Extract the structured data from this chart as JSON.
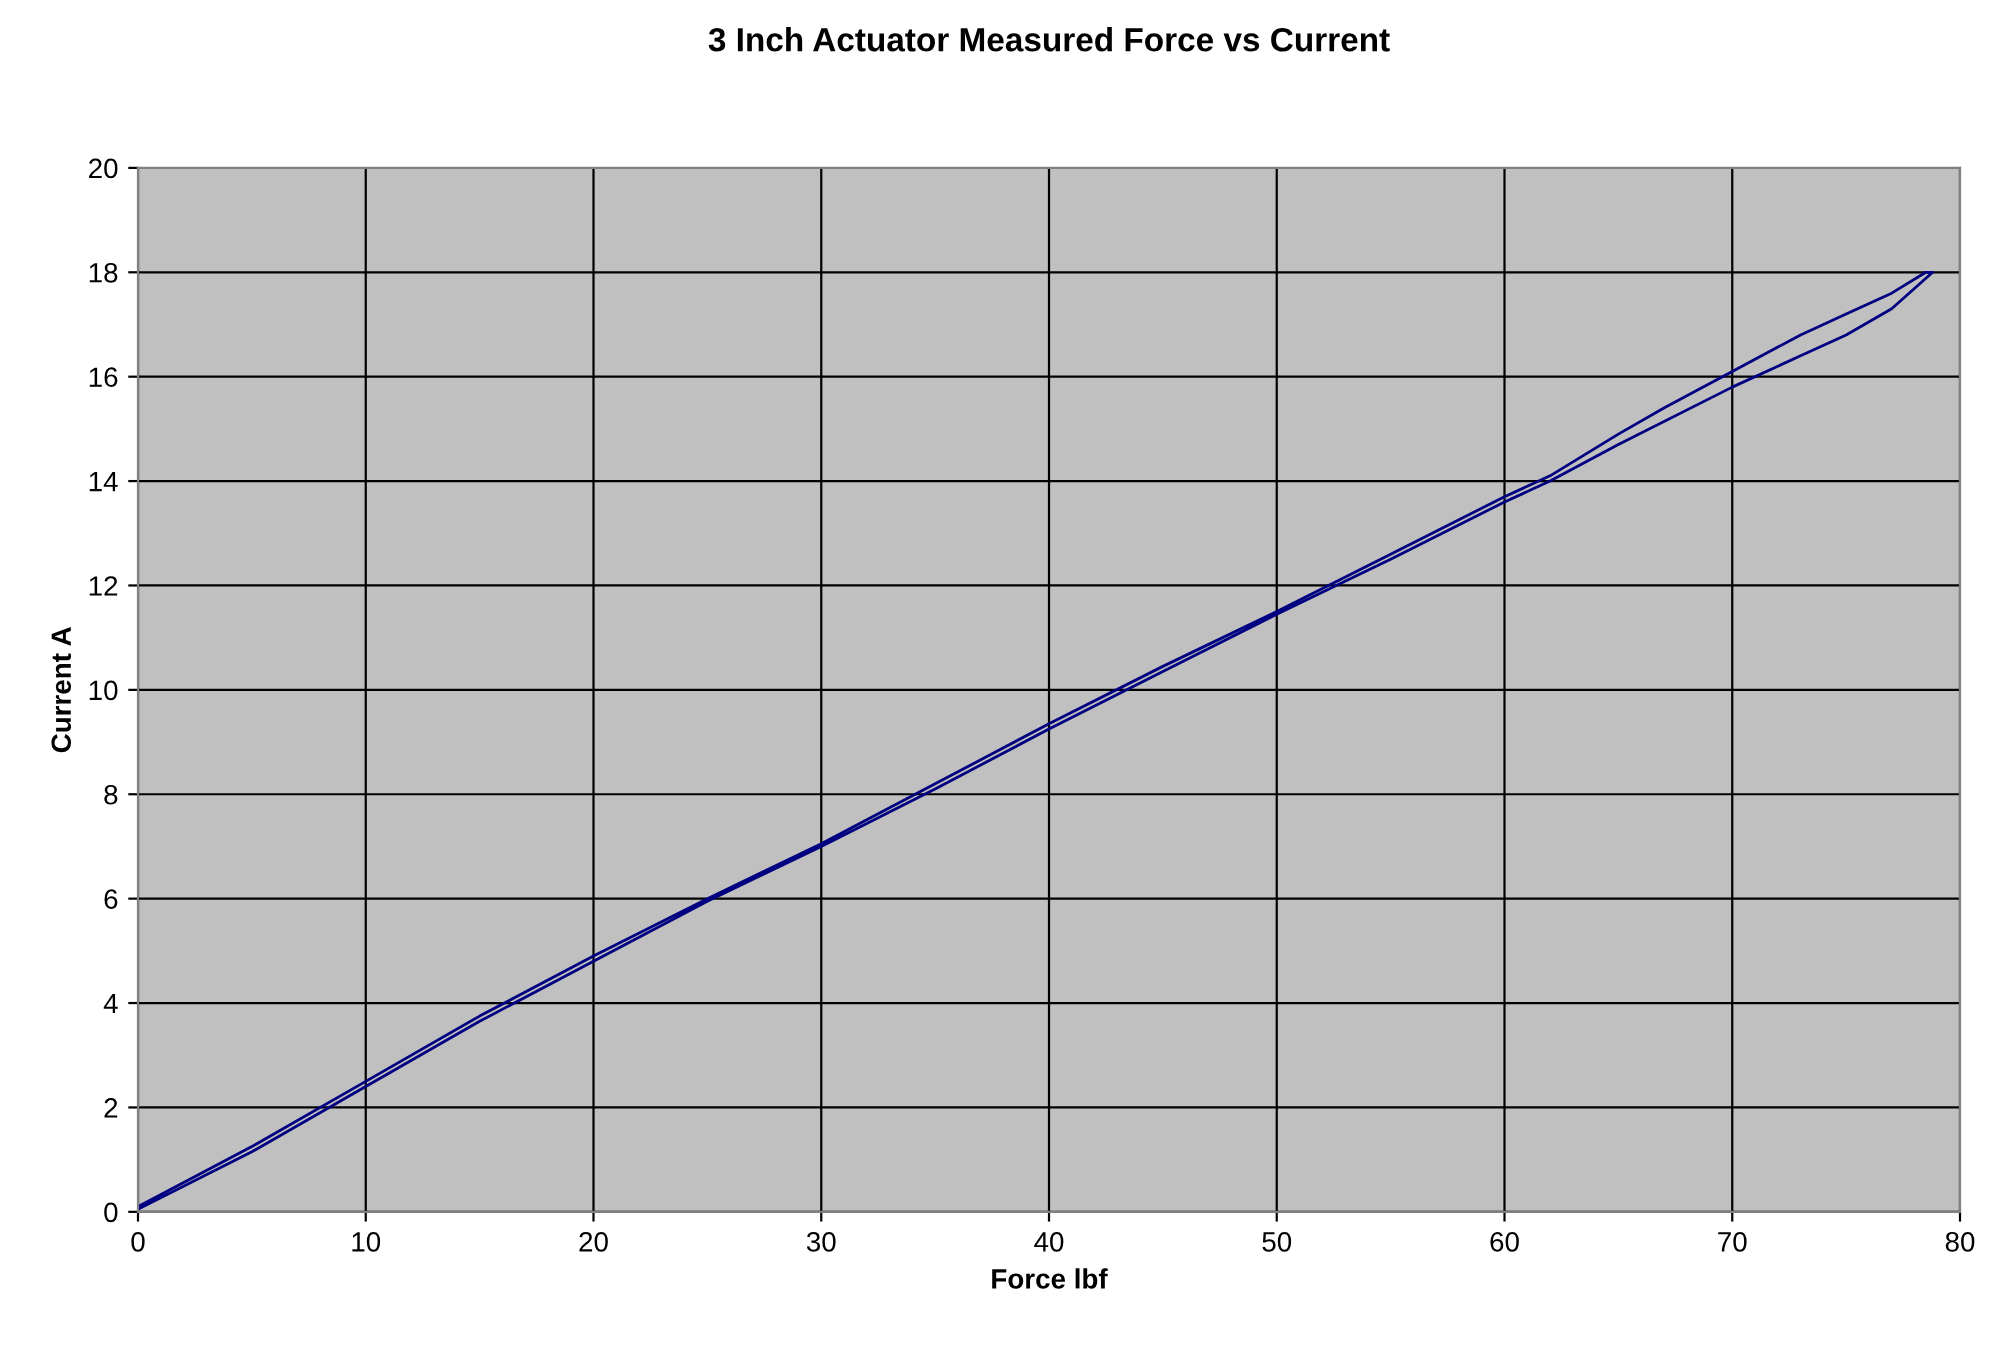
{
  "chart_data": {
    "type": "line",
    "title": "3 Inch Actuator Measured Force vs Current",
    "xlabel": "Force lbf",
    "ylabel": "Current A",
    "xlim": [
      0,
      80
    ],
    "xticks": [
      0,
      10,
      20,
      30,
      40,
      50,
      60,
      70,
      80
    ],
    "ylim": [
      0,
      20
    ],
    "yticks": [
      0,
      2,
      4,
      6,
      8,
      10,
      12,
      14,
      16,
      18,
      20
    ],
    "grid": true,
    "legend": false,
    "marker": "none",
    "line_style": "solid",
    "series": [
      {
        "color": "#000080",
        "x": [
          0,
          5,
          10,
          15,
          20,
          25,
          30,
          35,
          40,
          45,
          50,
          55,
          60,
          62,
          65,
          70,
          73,
          75,
          77,
          78.8,
          78.5,
          77,
          75,
          73,
          70,
          67,
          65,
          62,
          60,
          55,
          50,
          45,
          40,
          35,
          30,
          25,
          20,
          15,
          10,
          5,
          0
        ],
        "values": [
          0.05,
          1.15,
          2.4,
          3.65,
          4.8,
          5.95,
          7.0,
          8.1,
          9.25,
          10.35,
          11.45,
          12.5,
          13.6,
          14.0,
          14.7,
          15.8,
          16.4,
          16.8,
          17.3,
          18.0,
          18.0,
          17.6,
          17.2,
          16.8,
          16.1,
          15.4,
          14.9,
          14.1,
          13.7,
          12.6,
          11.5,
          10.45,
          9.35,
          8.2,
          7.05,
          6.0,
          4.9,
          3.75,
          2.5,
          1.25,
          0.1
        ]
      }
    ]
  }
}
